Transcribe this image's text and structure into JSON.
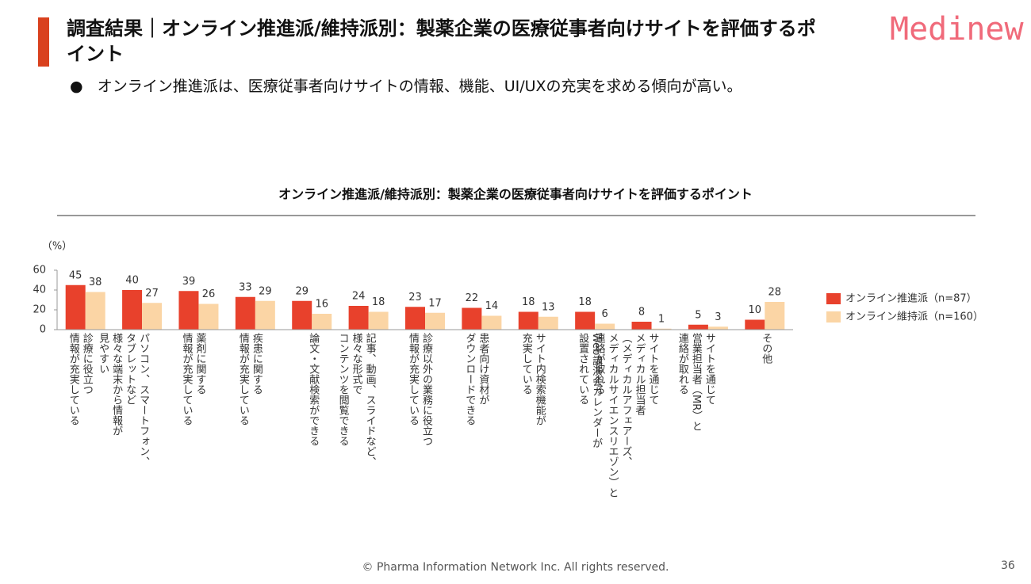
{
  "header": {
    "title": "調査結果｜オンライン推進派/維持派別：製薬企業の医療従事者向けサイトを評価するポイント",
    "bullet": "オンライン推進派は、医療従事者向けサイトの情報、機能、UI/UXの充実を求める傾向が高い。",
    "logo": "Medinew"
  },
  "chart_data": {
    "type": "bar",
    "title": "オンライン推進派/維持派別：製薬企業の医療従事者向けサイトを評価するポイント",
    "y_label": "（%）",
    "categories": [
      "診療に役立つ\n情報が充実している",
      "パソコン、スマートフォン、\nタブレットなど\n様々な端末から情報が\n見やすい",
      "薬剤に関する\n情報が充実している",
      "疾患に関する\n情報が充実している",
      "論文・文献検索ができる",
      "記事、動画、スライドなど、\n様々な形式で\nコンテンツを閲覧できる",
      "診療以外の業務に役立つ\n情報が充実している",
      "患者向け資材が\nダウンロードできる",
      "サイト内検索機能が\n充実している",
      "Web講演会カレンダーが\n設置されている",
      "サイトを通じて\nメディカル担当者\n（メディカルアフェアーズ、\nメディカルサイエンスリエゾン）と\n連絡が取れる",
      "サイトを通じて\n営業担当者（MR）と\n連絡が取れる",
      "その他"
    ],
    "series": [
      {
        "name": "オンライン推進派（n=87）",
        "color": "#e8412c",
        "values": [
          45,
          40,
          39,
          33,
          29,
          24,
          23,
          22,
          18,
          18,
          8,
          5,
          10
        ]
      },
      {
        "name": "オンライン維持派（n=160）",
        "color": "#fbd5a5",
        "values": [
          38,
          27,
          26,
          29,
          16,
          18,
          17,
          14,
          13,
          6,
          1,
          3,
          28
        ]
      }
    ],
    "ylim": [
      0,
      60
    ],
    "yticks": [
      0,
      20,
      40,
      60
    ],
    "legend": "right"
  },
  "footer": {
    "copyright": "© Pharma Information Network Inc.  All rights reserved.",
    "page": "36"
  }
}
